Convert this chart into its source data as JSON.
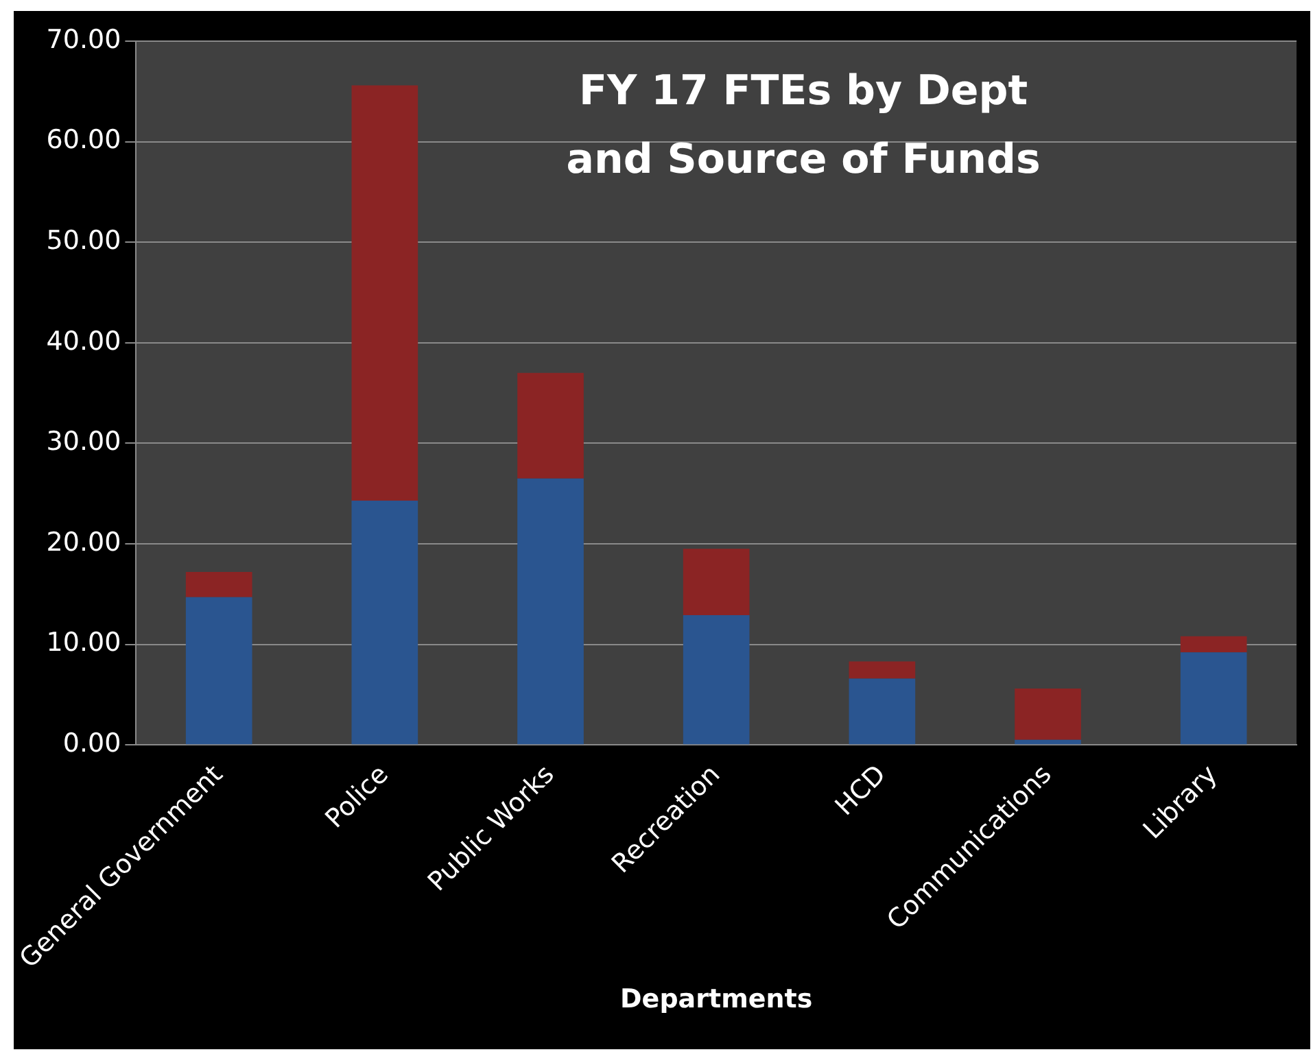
{
  "chart_data": {
    "type": "bar",
    "title": "FY 17 FTEs by Dept\nand Source of Funds",
    "xlabel": "Departments",
    "categories": [
      "General Government",
      "Police",
      "Public Works",
      "Recreation",
      "HCD",
      "Communications",
      "Library"
    ],
    "stacked": true,
    "series": [
      {
        "color": "#2a5590",
        "values": [
          14.7,
          24.3,
          26.5,
          12.9,
          6.6,
          0.5,
          9.2
        ]
      },
      {
        "color": "#8b2424",
        "values": [
          2.5,
          41.3,
          10.5,
          6.6,
          1.7,
          5.1,
          1.6
        ]
      }
    ],
    "ylim": [
      0,
      70
    ],
    "yticks": [
      {
        "value": 0,
        "label": "0.00"
      },
      {
        "value": 10,
        "label": "10.00"
      },
      {
        "value": 20,
        "label": "20.00"
      },
      {
        "value": 30,
        "label": "30.00"
      },
      {
        "value": 40,
        "label": "40.00"
      },
      {
        "value": 50,
        "label": "50.00"
      },
      {
        "value": 60,
        "label": "60.00"
      },
      {
        "value": 70,
        "label": "70.00"
      }
    ],
    "grid": "y",
    "legend": false
  }
}
